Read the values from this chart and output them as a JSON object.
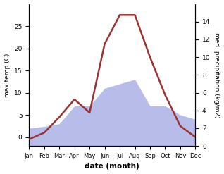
{
  "months": [
    "Jan",
    "Feb",
    "Mar",
    "Apr",
    "May",
    "Jun",
    "Jul",
    "Aug",
    "Sep",
    "Oct",
    "Nov",
    "Dec"
  ],
  "month_indices": [
    1,
    2,
    3,
    4,
    5,
    6,
    7,
    8,
    9,
    10,
    11,
    12
  ],
  "temperature": [
    -0.5,
    1.0,
    4.5,
    8.5,
    5.5,
    21.0,
    27.5,
    27.5,
    18.0,
    9.5,
    2.5,
    0.0
  ],
  "precipitation": [
    2.0,
    2.2,
    2.5,
    4.5,
    4.5,
    6.5,
    7.0,
    7.5,
    4.5,
    4.5,
    3.5,
    3.0
  ],
  "temp_color": "#993333",
  "precip_fill_color": "#b8bce8",
  "temp_ylim": [
    -2,
    30
  ],
  "temp_yticks": [
    0,
    5,
    10,
    15,
    20,
    25
  ],
  "precip_ylim": [
    0,
    16
  ],
  "precip_yticks": [
    0,
    2,
    4,
    6,
    8,
    10,
    12,
    14
  ],
  "ylabel_left": "max temp (C)",
  "ylabel_right": "med. precipitation (kg/m2)",
  "xlabel": "date (month)",
  "figsize": [
    3.18,
    2.47
  ],
  "dpi": 100
}
